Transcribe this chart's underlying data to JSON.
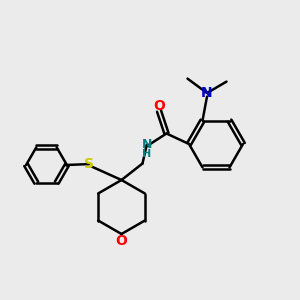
{
  "bg_color": "#ebebeb",
  "atom_colors": {
    "O": "#ff0000",
    "N_blue": "#0000cc",
    "S": "#cccc00",
    "NH": "#008080",
    "C": "#000000"
  },
  "bond_color": "#000000",
  "bond_width": 1.8,
  "figsize": [
    3.0,
    3.0
  ],
  "dpi": 100,
  "xlim": [
    0,
    10
  ],
  "ylim": [
    0,
    10
  ]
}
